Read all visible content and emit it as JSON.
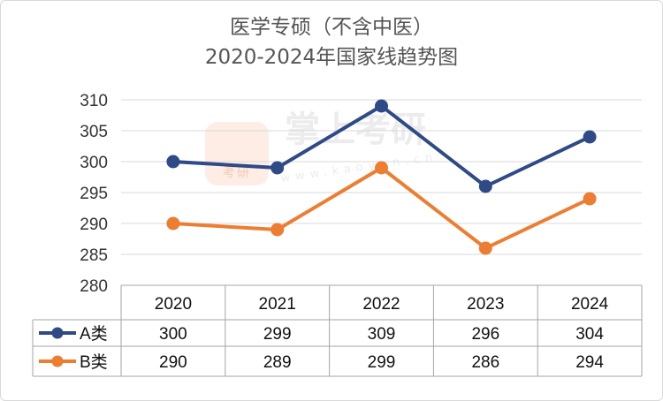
{
  "chart_data": {
    "type": "line",
    "title_lines": [
      "医学专硕（不含中医）",
      "2020-2024年国家线趋势图"
    ],
    "categories": [
      "2020",
      "2021",
      "2022",
      "2023",
      "2024"
    ],
    "series": [
      {
        "name": "A类",
        "values": [
          300,
          299,
          309,
          296,
          304
        ],
        "color": "#2e4a87"
      },
      {
        "name": "B类",
        "values": [
          290,
          289,
          299,
          286,
          294
        ],
        "color": "#ed7d31"
      }
    ],
    "ylim": [
      280,
      310
    ],
    "yticks": [
      280,
      285,
      290,
      295,
      300,
      305,
      310
    ],
    "grid": true,
    "legend": "data-table"
  },
  "watermark": {
    "text": "掌上考研",
    "subtext": "www.kaoyan.cn",
    "badge": "考研"
  }
}
